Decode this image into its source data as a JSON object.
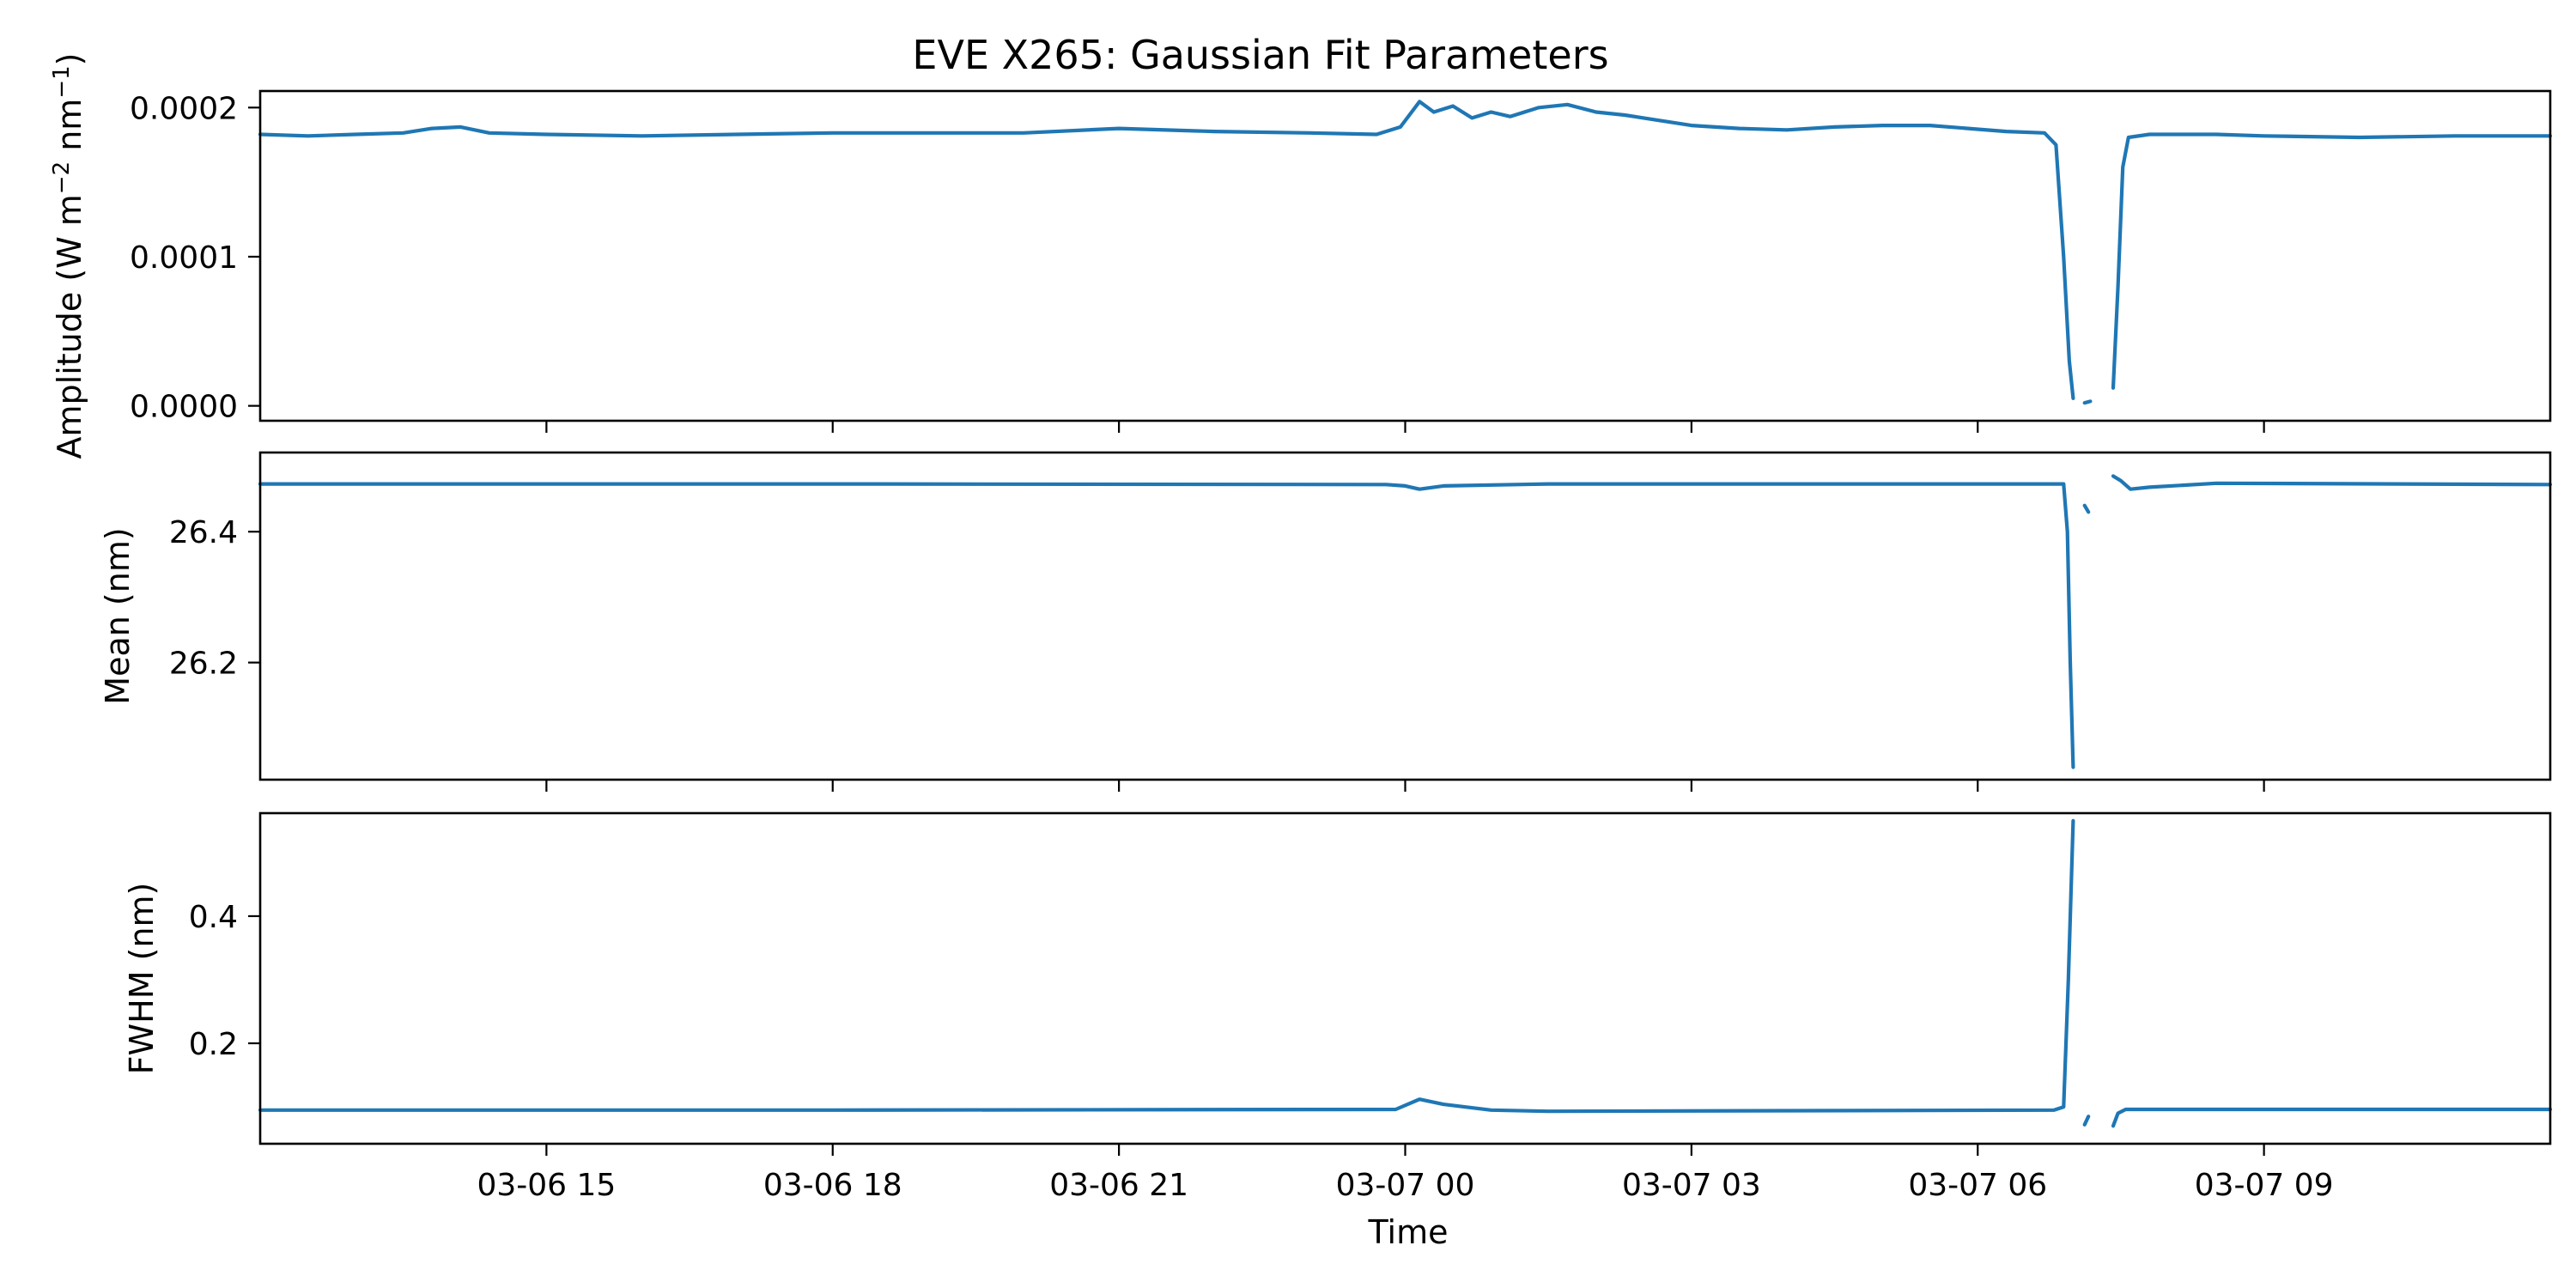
{
  "chart_data": {
    "type": "line",
    "title": "EVE X265: Gaussian Fit Parameters",
    "xlabel": "Time",
    "x_unit": "hours since 03-06 12:00",
    "xlim": [
      0.0,
      24.0
    ],
    "x_ticks": [
      {
        "value": 3,
        "label": "03-06 15"
      },
      {
        "value": 6,
        "label": "03-06 18"
      },
      {
        "value": 9,
        "label": "03-06 21"
      },
      {
        "value": 12,
        "label": "03-07 00"
      },
      {
        "value": 15,
        "label": "03-07 03"
      },
      {
        "value": 18,
        "label": "03-07 06"
      },
      {
        "value": 21,
        "label": "03-07 09"
      }
    ],
    "line_color": "#1f77b4",
    "grid": false,
    "panels": [
      {
        "name": "amplitude",
        "ylabel_text": "Amplitude (W m",
        "ylabel_sup1": "−2",
        "ylabel_mid": " nm",
        "ylabel_sup2": "−1",
        "ylabel_end": ")",
        "ylim": [
          -1e-05,
          0.0002111
        ],
        "y_ticks": [
          {
            "value": 0.0,
            "label": "0.0000"
          },
          {
            "value": 0.0001,
            "label": "0.0001"
          },
          {
            "value": 0.0002,
            "label": "0.0002"
          }
        ],
        "segments": [
          [
            [
              0.0,
              0.000182
            ],
            [
              0.5,
              0.000181
            ],
            [
              1.0,
              0.000182
            ],
            [
              1.5,
              0.000183
            ],
            [
              1.8,
              0.000186
            ],
            [
              2.1,
              0.000187
            ],
            [
              2.4,
              0.000183
            ],
            [
              3.0,
              0.000182
            ],
            [
              4.0,
              0.000181
            ],
            [
              5.0,
              0.000182
            ],
            [
              6.0,
              0.000183
            ],
            [
              7.0,
              0.000183
            ],
            [
              8.0,
              0.000183
            ],
            [
              9.0,
              0.000186
            ],
            [
              10.0,
              0.000184
            ],
            [
              11.0,
              0.000183
            ],
            [
              11.7,
              0.000182
            ],
            [
              11.95,
              0.000187
            ],
            [
              12.15,
              0.000204
            ],
            [
              12.3,
              0.000197
            ],
            [
              12.5,
              0.000201
            ],
            [
              12.7,
              0.000193
            ],
            [
              12.9,
              0.000197
            ],
            [
              13.1,
              0.000194
            ],
            [
              13.4,
              0.0002
            ],
            [
              13.7,
              0.000202
            ],
            [
              14.0,
              0.000197
            ],
            [
              14.3,
              0.000195
            ],
            [
              14.6,
              0.000192
            ],
            [
              15.0,
              0.000188
            ],
            [
              15.5,
              0.000186
            ],
            [
              16.0,
              0.000185
            ],
            [
              16.5,
              0.000187
            ],
            [
              17.0,
              0.000188
            ],
            [
              17.5,
              0.000188
            ],
            [
              17.9,
              0.000186
            ],
            [
              18.3,
              0.000184
            ],
            [
              18.7,
              0.000183
            ],
            [
              18.82,
              0.000175
            ],
            [
              18.9,
              0.0001
            ],
            [
              18.96,
              3e-05
            ],
            [
              19.0,
              5e-06
            ]
          ],
          [
            [
              19.12,
              2e-06
            ],
            [
              19.18,
              3e-06
            ]
          ],
          [
            [
              19.42,
              1.2e-05
            ],
            [
              19.47,
              8e-05
            ],
            [
              19.52,
              0.00016
            ],
            [
              19.58,
              0.00018
            ],
            [
              19.8,
              0.000182
            ],
            [
              20.5,
              0.000182
            ],
            [
              21.0,
              0.000181
            ],
            [
              22.0,
              0.00018
            ],
            [
              23.0,
              0.000181
            ],
            [
              24.0,
              0.000181
            ]
          ]
        ]
      },
      {
        "name": "mean",
        "ylabel_text": "Mean (nm)",
        "ylim": [
          26.021,
          26.521
        ],
        "y_ticks": [
          {
            "value": 26.2,
            "label": "26.2"
          },
          {
            "value": 26.4,
            "label": "26.4"
          }
        ],
        "segments": [
          [
            [
              0.0,
              26.473
            ],
            [
              6.0,
              26.473
            ],
            [
              11.8,
              26.472
            ],
            [
              12.0,
              26.47
            ],
            [
              12.15,
              26.465
            ],
            [
              12.4,
              26.47
            ],
            [
              13.5,
              26.473
            ],
            [
              18.9,
              26.473
            ],
            [
              18.94,
              26.4
            ],
            [
              18.97,
              26.2
            ],
            [
              19.0,
              26.04
            ]
          ],
          [
            [
              19.12,
              26.44
            ],
            [
              19.16,
              26.43
            ]
          ],
          [
            [
              19.42,
              26.485
            ],
            [
              19.5,
              26.478
            ],
            [
              19.6,
              26.465
            ],
            [
              19.8,
              26.468
            ],
            [
              20.5,
              26.474
            ],
            [
              24.0,
              26.472
            ]
          ]
        ]
      },
      {
        "name": "fwhm",
        "ylabel_text": "FWHM (nm)",
        "ylim": [
          0.042,
          0.562
        ],
        "y_ticks": [
          {
            "value": 0.2,
            "label": "0.2"
          },
          {
            "value": 0.4,
            "label": "0.4"
          }
        ],
        "segments": [
          [
            [
              0.0,
              0.095
            ],
            [
              6.0,
              0.095
            ],
            [
              11.9,
              0.096
            ],
            [
              12.15,
              0.112
            ],
            [
              12.4,
              0.104
            ],
            [
              12.9,
              0.095
            ],
            [
              13.5,
              0.093
            ],
            [
              18.8,
              0.095
            ],
            [
              18.9,
              0.1
            ],
            [
              18.95,
              0.3
            ],
            [
              19.0,
              0.55
            ]
          ],
          [
            [
              19.12,
              0.072
            ],
            [
              19.16,
              0.085
            ]
          ],
          [
            [
              19.42,
              0.07
            ],
            [
              19.47,
              0.09
            ],
            [
              19.55,
              0.096
            ],
            [
              24.0,
              0.096
            ]
          ]
        ]
      }
    ]
  }
}
